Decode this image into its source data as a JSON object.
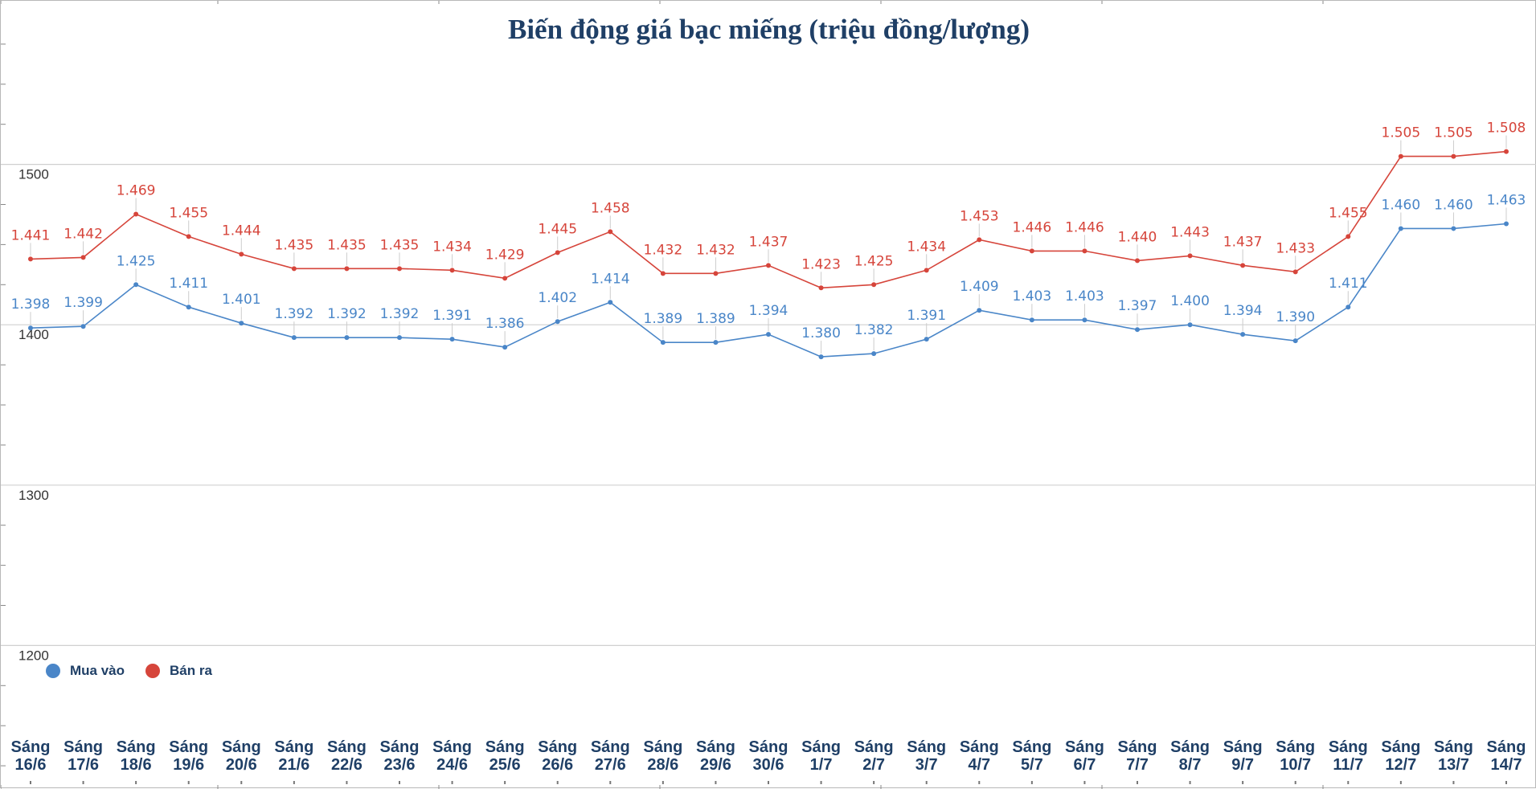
{
  "chart_data": {
    "type": "line",
    "title": "Biến động giá bạc miếng (triệu đồng/lượng)",
    "categories": [
      "Sáng 16/6",
      "Sáng 17/6",
      "Sáng 18/6",
      "Sáng 19/6",
      "Sáng 20/6",
      "Sáng 21/6",
      "Sáng 22/6",
      "Sáng 23/6",
      "Sáng 24/6",
      "Sáng 25/6",
      "Sáng 26/6",
      "Sáng 27/6",
      "Sáng 28/6",
      "Sáng 29/6",
      "Sáng 30/6",
      "Sáng 1/7",
      "Sáng 2/7",
      "Sáng 3/7",
      "Sáng 4/7",
      "Sáng 5/7",
      "Sáng 6/7",
      "Sáng 7/7",
      "Sáng 8/7",
      "Sáng 9/7",
      "Sáng 10/7",
      "Sáng 11/7",
      "Sáng 12/7",
      "Sáng 13/7",
      "Sáng 14/7"
    ],
    "series": [
      {
        "name": "Mua vào",
        "color": "#4a86c8",
        "values": [
          1398,
          1399,
          1425,
          1411,
          1401,
          1392,
          1392,
          1392,
          1391,
          1386,
          1402,
          1414,
          1389,
          1389,
          1394,
          1380,
          1382,
          1391,
          1409,
          1403,
          1403,
          1397,
          1400,
          1394,
          1390,
          1411,
          1460,
          1460,
          1463
        ],
        "labels": [
          "1.398",
          "1.399",
          "1.425",
          "1.411",
          "1.401",
          "1.392",
          "1.392",
          "1.392",
          "1.391",
          "1.386",
          "1.402",
          "1.414",
          "1.389",
          "1.389",
          "1.394",
          "1.380",
          "1.382",
          "1.391",
          "1.409",
          "1.403",
          "1.403",
          "1.397",
          "1.400",
          "1.394",
          "1.390",
          "1.411",
          "1.460",
          "1.460",
          "1.463"
        ]
      },
      {
        "name": "Bán ra",
        "color": "#d6453b",
        "values": [
          1441,
          1442,
          1469,
          1455,
          1444,
          1435,
          1435,
          1435,
          1434,
          1429,
          1445,
          1458,
          1432,
          1432,
          1437,
          1423,
          1425,
          1434,
          1453,
          1446,
          1446,
          1440,
          1443,
          1437,
          1433,
          1455,
          1505,
          1505,
          1508
        ],
        "labels": [
          "1.441",
          "1.442",
          "1.469",
          "1.455",
          "1.444",
          "1.435",
          "1.435",
          "1.435",
          "1.434",
          "1.429",
          "1.445",
          "1.458",
          "1.432",
          "1.432",
          "1.437",
          "1.423",
          "1.425",
          "1.434",
          "1.453",
          "1.446",
          "1.446",
          "1.440",
          "1.443",
          "1.437",
          "1.433",
          "1.455",
          "1.505",
          "1.505",
          "1.508"
        ]
      }
    ],
    "yticks": [
      "1500",
      "1400",
      "1300",
      "1200"
    ],
    "ytick_values": [
      1500,
      1400,
      1300,
      1200
    ],
    "ylim": [
      1100,
      1600
    ],
    "grid": true,
    "legend": "bottom-left"
  }
}
